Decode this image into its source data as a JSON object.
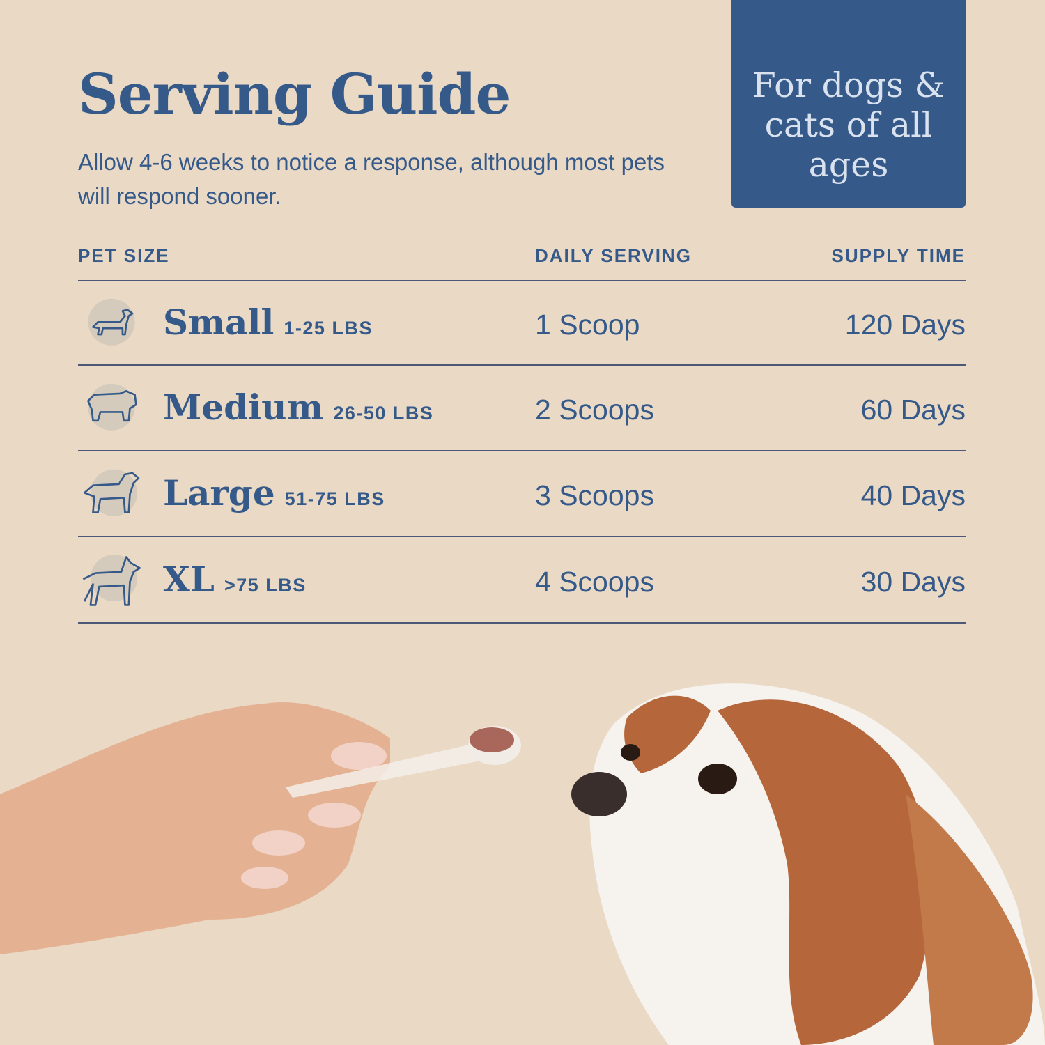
{
  "title": "Serving Guide",
  "subtitle": "Allow 4-6 weeks to notice a response, although most pets will respond sooner.",
  "badge": "For dogs & cats of all ages",
  "headers": {
    "pet_size": "PET SIZE",
    "daily_serving": "DAILY SERVING",
    "supply_time": "SUPPLY TIME"
  },
  "rows": [
    {
      "size": "Small",
      "weight": "1-25 LBS",
      "serving": "1 Scoop",
      "supply": "120 Days",
      "icon": "dachshund-icon"
    },
    {
      "size": "Medium",
      "weight": "26-50 LBS",
      "serving": "2 Scoops",
      "supply": "60 Days",
      "icon": "bulldog-icon"
    },
    {
      "size": "Large",
      "weight": "51-75 LBS",
      "serving": "3 Scoops",
      "supply": "40 Days",
      "icon": "retriever-icon"
    },
    {
      "size": "XL",
      "weight": ">75 LBS",
      "serving": "4 Scoops",
      "supply": "30 Days",
      "icon": "doberman-icon"
    }
  ],
  "colors": {
    "background": "#ead9c5",
    "accent": "#355a8a",
    "icon_circle": "#d5cbbc"
  }
}
